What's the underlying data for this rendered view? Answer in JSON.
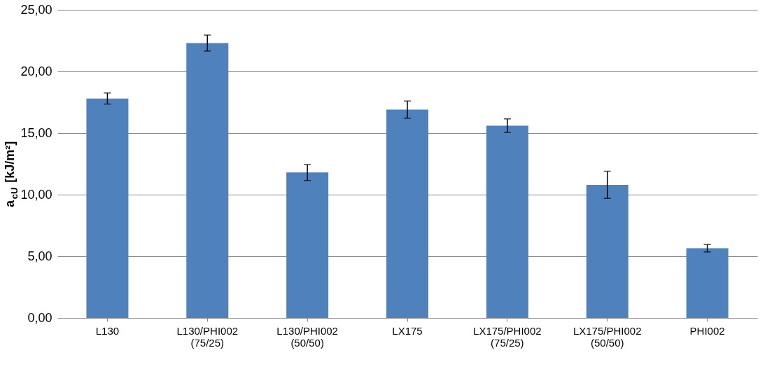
{
  "chart_data": {
    "type": "bar",
    "ylabel": "a$_{cU}$ [kJ/m²]",
    "categories": [
      "L130",
      "L130/PHI002\n(75/25)",
      "L130/PHI002\n(50/50)",
      "LX175",
      "LX175/PHI002\n(75/25)",
      "LX175/PHI002\n(50/50)",
      "PHI002"
    ],
    "values": [
      17.8,
      22.3,
      11.8,
      16.9,
      15.6,
      10.8,
      5.65
    ],
    "errors": [
      0.45,
      0.65,
      0.65,
      0.7,
      0.55,
      1.1,
      0.3
    ],
    "color": "#4f81bd",
    "ylim": [
      0,
      25
    ],
    "yticks": [
      {
        "value": 0,
        "label": "0,00"
      },
      {
        "value": 5,
        "label": "5,00"
      },
      {
        "value": 10,
        "label": "10,00"
      },
      {
        "value": 15,
        "label": "15,00"
      },
      {
        "value": 20,
        "label": "20,00"
      },
      {
        "value": 25,
        "label": "25,00"
      }
    ],
    "grid": "y"
  }
}
